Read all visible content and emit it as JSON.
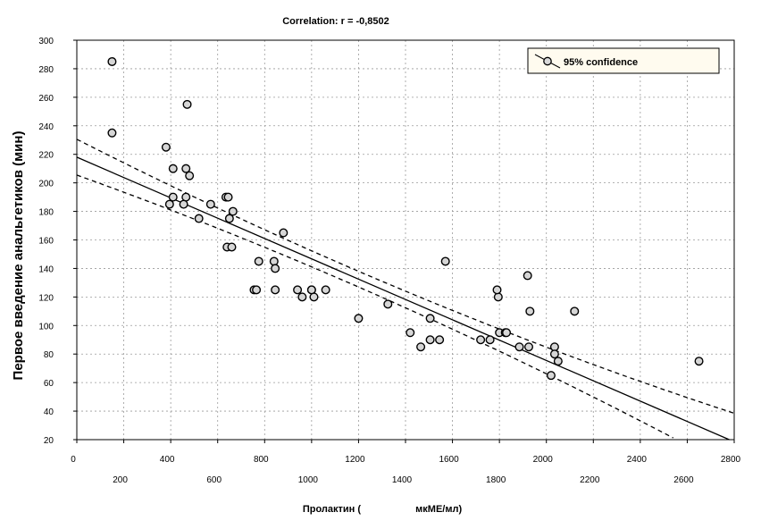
{
  "chart_data": {
    "type": "scatter",
    "title": "Correlation: r = -0,8502",
    "xlabel": "Пролактин (                    мкМЕ/мл)",
    "ylabel": "Первое введение анальгетиков (мин)",
    "xlim": [
      0,
      2800
    ],
    "ylim": [
      20,
      300
    ],
    "x_ticks": [
      0,
      200,
      400,
      600,
      800,
      1000,
      1200,
      1400,
      1600,
      1800,
      2000,
      2200,
      2400,
      2600,
      2800
    ],
    "y_ticks": [
      20,
      40,
      60,
      80,
      100,
      120,
      140,
      160,
      180,
      200,
      220,
      240,
      260,
      280,
      300
    ],
    "grid": true,
    "legend": {
      "position": "top-right",
      "entries": [
        "95% confidence"
      ]
    },
    "series": [
      {
        "values": [
          [
            150,
            285
          ],
          [
            150,
            235
          ],
          [
            380,
            225
          ],
          [
            395,
            185
          ],
          [
            410,
            210
          ],
          [
            410,
            190
          ],
          [
            470,
            255
          ],
          [
            465,
            210
          ],
          [
            480,
            205
          ],
          [
            465,
            190
          ],
          [
            455,
            185
          ],
          [
            520,
            175
          ],
          [
            570,
            185
          ],
          [
            635,
            190
          ],
          [
            645,
            190
          ],
          [
            650,
            175
          ],
          [
            640,
            155
          ],
          [
            660,
            155
          ],
          [
            665,
            180
          ],
          [
            755,
            125
          ],
          [
            765,
            125
          ],
          [
            775,
            145
          ],
          [
            840,
            145
          ],
          [
            845,
            140
          ],
          [
            845,
            125
          ],
          [
            880,
            165
          ],
          [
            940,
            125
          ],
          [
            960,
            120
          ],
          [
            1000,
            125
          ],
          [
            1010,
            120
          ],
          [
            1000,
            125
          ],
          [
            1060,
            125
          ],
          [
            1200,
            105
          ],
          [
            1325,
            115
          ],
          [
            1420,
            95
          ],
          [
            1465,
            85
          ],
          [
            1505,
            105
          ],
          [
            1505,
            90
          ],
          [
            1545,
            90
          ],
          [
            1570,
            145
          ],
          [
            1720,
            90
          ],
          [
            1760,
            90
          ],
          [
            1795,
            120
          ],
          [
            1790,
            125
          ],
          [
            1800,
            95
          ],
          [
            1825,
            95
          ],
          [
            1830,
            95
          ],
          [
            1885,
            85
          ],
          [
            1920,
            135
          ],
          [
            1930,
            110
          ],
          [
            1925,
            85
          ],
          [
            2020,
            65
          ],
          [
            2035,
            85
          ],
          [
            2035,
            80
          ],
          [
            2050,
            75
          ],
          [
            2120,
            110
          ],
          [
            2650,
            75
          ]
        ]
      }
    ],
    "regression": {
      "x0": 0,
      "y0": 218,
      "slope": -0.07125
    },
    "confidence_band": {
      "center_halfwidth": 5.5,
      "edge_halfwidth": 20,
      "x_center": 1150
    }
  }
}
